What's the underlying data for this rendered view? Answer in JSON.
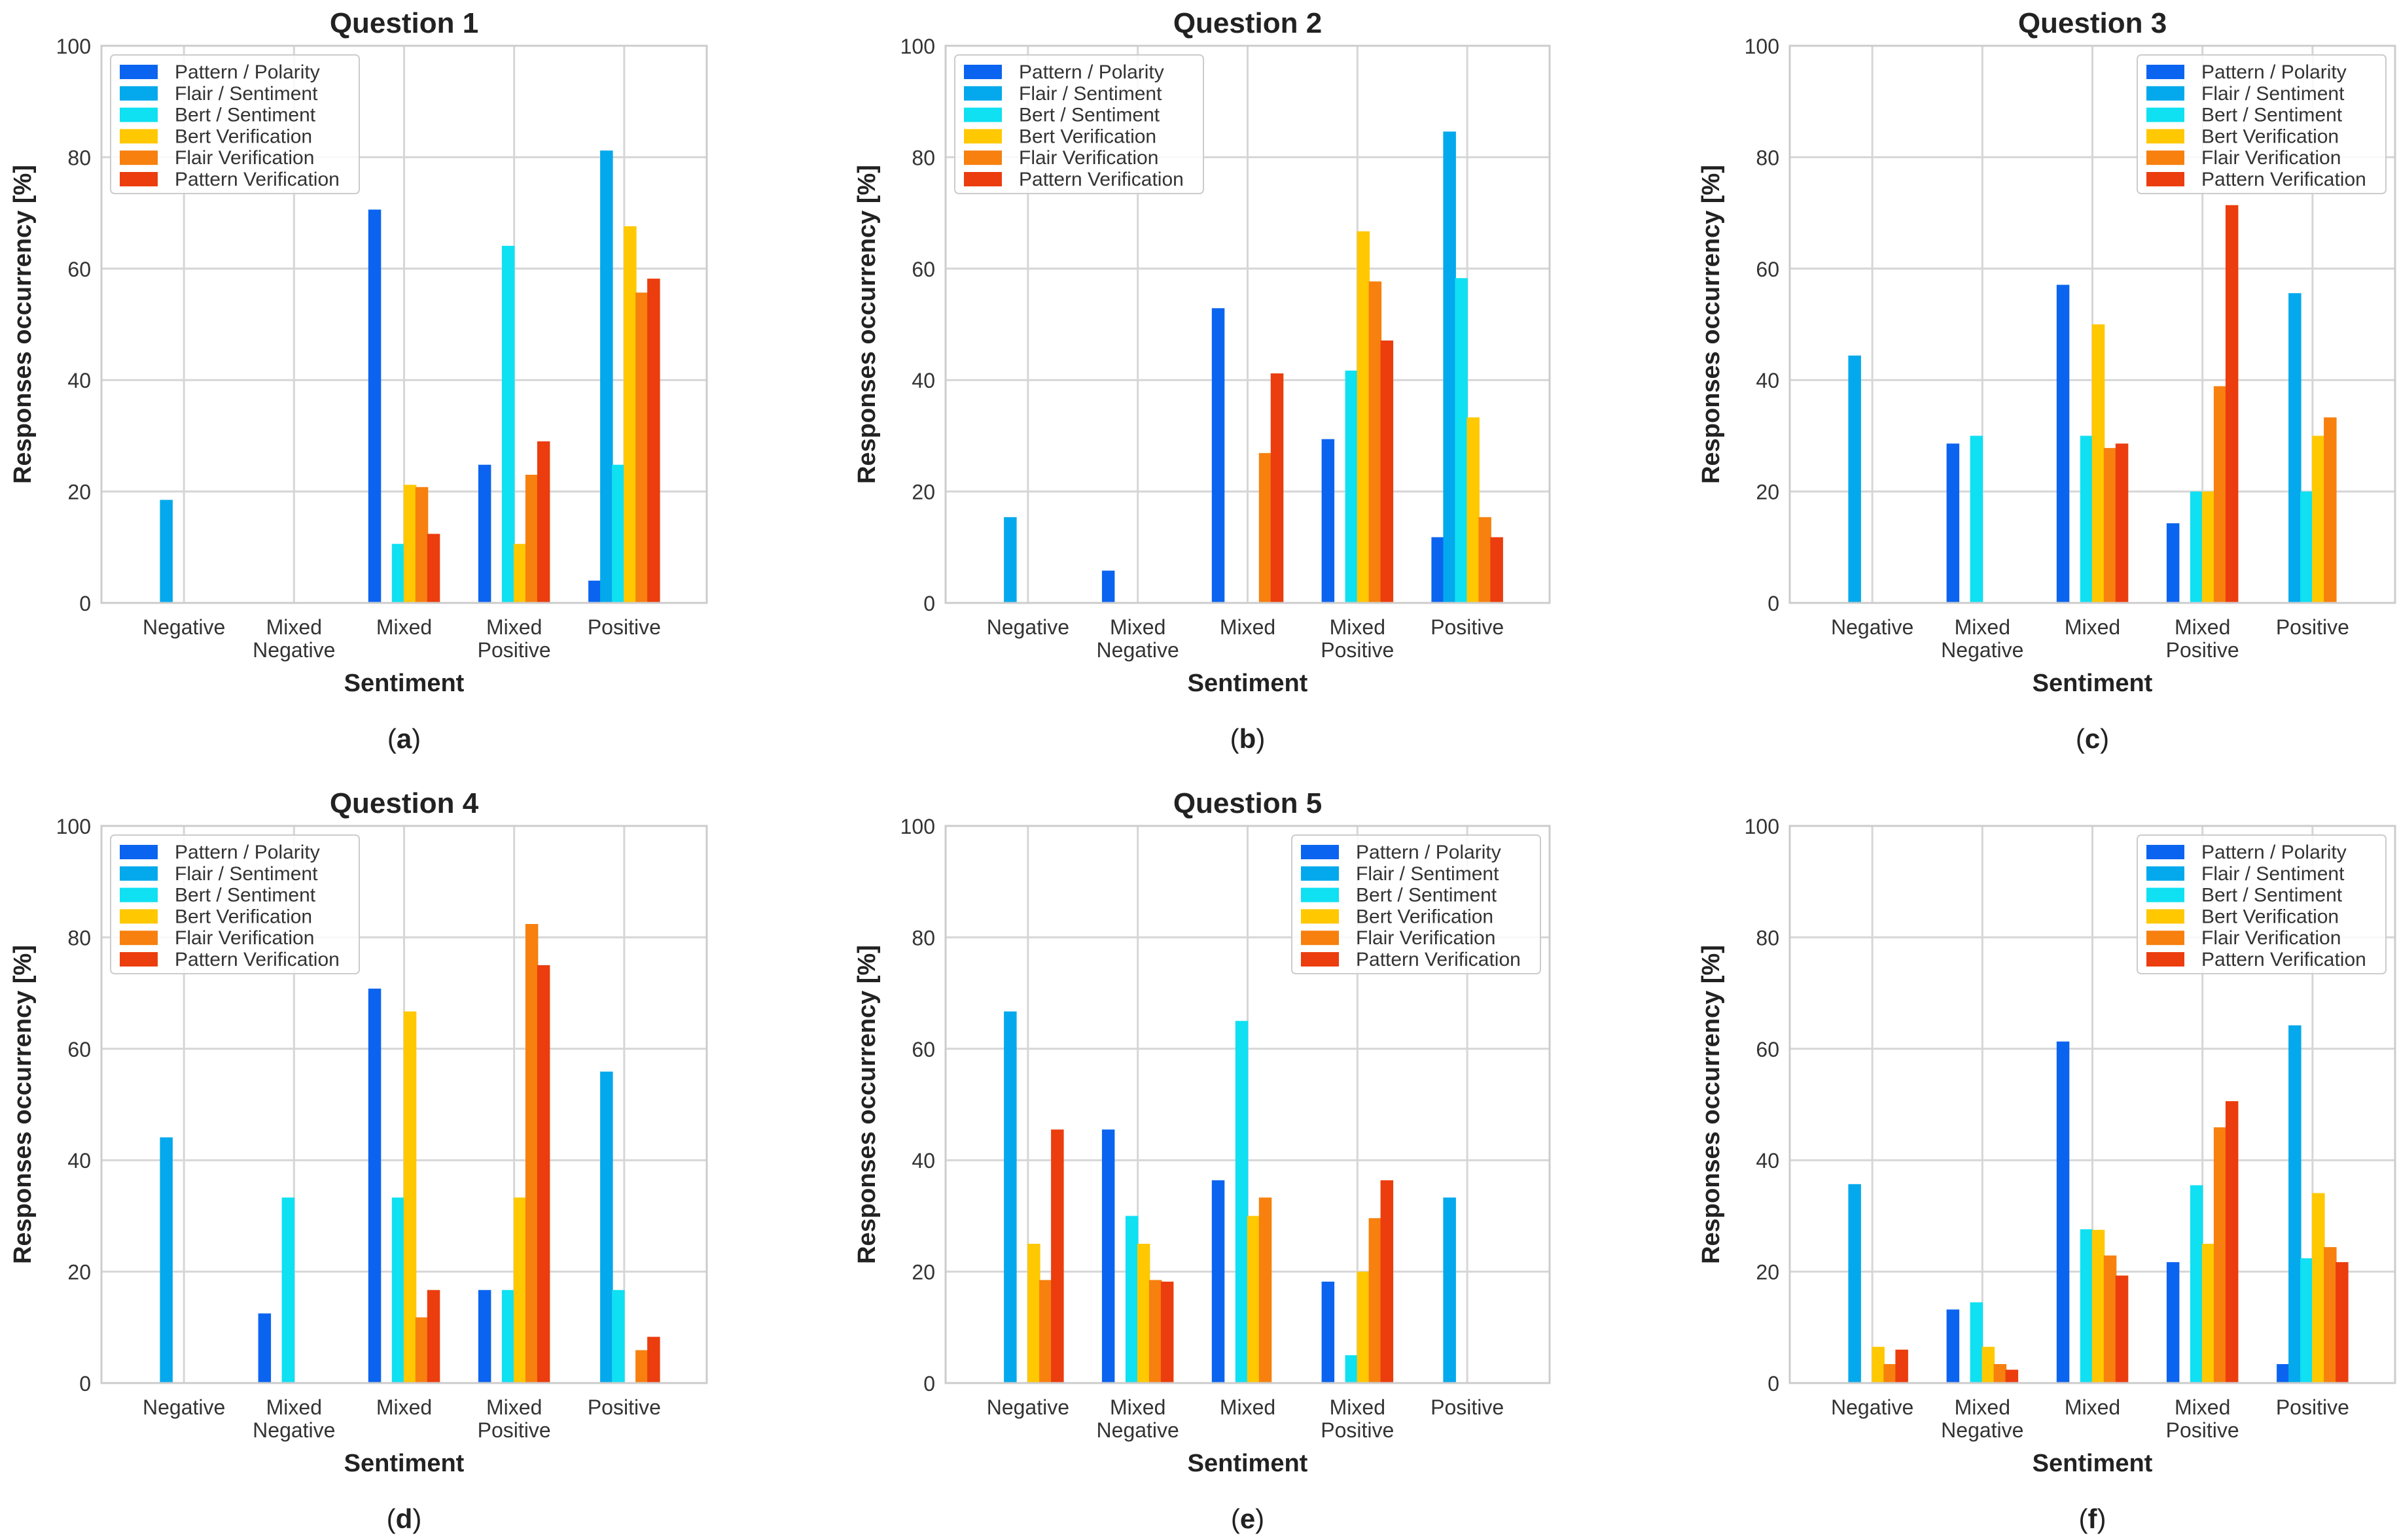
{
  "figure": {
    "series_names": [
      "Pattern / Polarity",
      "Flair / Sentiment",
      "Bert / Sentiment",
      "Bert Verification",
      "Flair Verification",
      "Pattern Verification"
    ],
    "series_colors": [
      "#0b64f0",
      "#03a9ec",
      "#0fe0f2",
      "#ffc800",
      "#f7800f",
      "#eb3d0e"
    ]
  },
  "chart_data": [
    {
      "type": "bar",
      "title": "Question 1",
      "panel_label": "(a)",
      "xlabel": "Sentiment",
      "ylabel": "Responses occurrency [%]",
      "ylim": [
        0,
        100
      ],
      "yticks": [
        0,
        20,
        40,
        60,
        80,
        100
      ],
      "grid": true,
      "legend": "top-left",
      "categories": [
        "Negative",
        "Mixed\nNegative",
        "Mixed",
        "Mixed\nPositive",
        "Positive"
      ],
      "series": [
        {
          "name": "Pattern / Polarity",
          "values": [
            0,
            0,
            70.6,
            24.8,
            4.0
          ]
        },
        {
          "name": "Flair / Sentiment",
          "values": [
            18.5,
            0,
            0,
            0,
            81.2
          ]
        },
        {
          "name": "Bert / Sentiment",
          "values": [
            0,
            0,
            10.6,
            64.1,
            24.8
          ]
        },
        {
          "name": "Bert Verification",
          "values": [
            0,
            0,
            21.2,
            10.6,
            67.6
          ]
        },
        {
          "name": "Flair Verification",
          "values": [
            0,
            0,
            20.8,
            23.0,
            55.7
          ]
        },
        {
          "name": "Pattern Verification",
          "values": [
            0,
            0,
            12.4,
            29.0,
            58.2
          ]
        }
      ]
    },
    {
      "type": "bar",
      "title": "Question 2",
      "panel_label": "(b)",
      "xlabel": "Sentiment",
      "ylabel": "Responses occurrency [%]",
      "ylim": [
        0,
        100
      ],
      "yticks": [
        0,
        20,
        40,
        60,
        80,
        100
      ],
      "grid": true,
      "legend": "top-left",
      "categories": [
        "Negative",
        "Mixed\nNegative",
        "Mixed",
        "Mixed\nPositive",
        "Positive"
      ],
      "series": [
        {
          "name": "Pattern / Polarity",
          "values": [
            0,
            5.8,
            52.9,
            29.4,
            11.8
          ]
        },
        {
          "name": "Flair / Sentiment",
          "values": [
            15.4,
            0,
            0,
            0,
            84.6
          ]
        },
        {
          "name": "Bert / Sentiment",
          "values": [
            0,
            0,
            0,
            41.7,
            58.3
          ]
        },
        {
          "name": "Bert Verification",
          "values": [
            0,
            0,
            0,
            66.7,
            33.3
          ]
        },
        {
          "name": "Flair Verification",
          "values": [
            0,
            0,
            26.9,
            57.7,
            15.4
          ]
        },
        {
          "name": "Pattern Verification",
          "values": [
            0,
            0,
            41.2,
            47.1,
            11.8
          ]
        }
      ]
    },
    {
      "type": "bar",
      "title": "Question 3",
      "panel_label": "(c)",
      "xlabel": "Sentiment",
      "ylabel": "Responses occurrency [%]",
      "ylim": [
        0,
        100
      ],
      "yticks": [
        0,
        20,
        40,
        60,
        80,
        100
      ],
      "grid": true,
      "legend": "top-right",
      "categories": [
        "Negative",
        "Mixed\nNegative",
        "Mixed",
        "Mixed\nPositive",
        "Positive"
      ],
      "series": [
        {
          "name": "Pattern / Polarity",
          "values": [
            0,
            28.6,
            57.1,
            14.3,
            0
          ]
        },
        {
          "name": "Flair / Sentiment",
          "values": [
            44.4,
            0,
            0,
            0,
            55.6
          ]
        },
        {
          "name": "Bert / Sentiment",
          "values": [
            0,
            30.0,
            30.0,
            20.0,
            20.0
          ]
        },
        {
          "name": "Bert Verification",
          "values": [
            0,
            0,
            50.0,
            20.0,
            30.0
          ]
        },
        {
          "name": "Flair Verification",
          "values": [
            0,
            0,
            27.8,
            38.9,
            33.3
          ]
        },
        {
          "name": "Pattern Verification",
          "values": [
            0,
            0,
            28.6,
            71.4,
            0
          ]
        }
      ]
    },
    {
      "type": "bar",
      "title": "Question 4",
      "panel_label": "(d)",
      "xlabel": "Sentiment",
      "ylabel": "Responses occurrency [%]",
      "ylim": [
        0,
        100
      ],
      "yticks": [
        0,
        20,
        40,
        60,
        80,
        100
      ],
      "grid": true,
      "legend": "top-left",
      "categories": [
        "Negative",
        "Mixed\nNegative",
        "Mixed",
        "Mixed\nPositive",
        "Positive"
      ],
      "series": [
        {
          "name": "Pattern / Polarity",
          "values": [
            0,
            12.5,
            70.8,
            16.7,
            0
          ]
        },
        {
          "name": "Flair / Sentiment",
          "values": [
            44.1,
            0,
            0,
            0,
            55.9
          ]
        },
        {
          "name": "Bert / Sentiment",
          "values": [
            0,
            33.3,
            33.3,
            16.7,
            16.7
          ]
        },
        {
          "name": "Bert Verification",
          "values": [
            0,
            0,
            66.7,
            33.3,
            0
          ]
        },
        {
          "name": "Flair Verification",
          "values": [
            0,
            0,
            11.8,
            82.4,
            5.9
          ]
        },
        {
          "name": "Pattern Verification",
          "values": [
            0,
            0,
            16.7,
            75.0,
            8.3
          ]
        }
      ]
    },
    {
      "type": "bar",
      "title": "Question 5",
      "panel_label": "(e)",
      "xlabel": "Sentiment",
      "ylabel": "Responses occurrency [%]",
      "ylim": [
        0,
        100
      ],
      "yticks": [
        0,
        20,
        40,
        60,
        80,
        100
      ],
      "grid": true,
      "legend": "top-right",
      "categories": [
        "Negative",
        "Mixed\nNegative",
        "Mixed",
        "Mixed\nPositive",
        "Positive"
      ],
      "series": [
        {
          "name": "Pattern / Polarity",
          "values": [
            0,
            45.5,
            36.4,
            18.2,
            0
          ]
        },
        {
          "name": "Flair / Sentiment",
          "values": [
            66.7,
            0,
            0,
            0,
            33.3
          ]
        },
        {
          "name": "Bert / Sentiment",
          "values": [
            0,
            30.0,
            65.0,
            5.0,
            0
          ]
        },
        {
          "name": "Bert Verification",
          "values": [
            25.0,
            25.0,
            30.0,
            20.0,
            0
          ]
        },
        {
          "name": "Flair Verification",
          "values": [
            18.5,
            18.5,
            33.3,
            29.6,
            0
          ]
        },
        {
          "name": "Pattern Verification",
          "values": [
            45.5,
            18.2,
            0,
            36.4,
            0
          ]
        }
      ]
    },
    {
      "type": "bar",
      "title": "",
      "panel_label": "(f)",
      "xlabel": "Sentiment",
      "ylabel": "Responses occurrency [%]",
      "ylim": [
        0,
        100
      ],
      "yticks": [
        0,
        20,
        40,
        60,
        80,
        100
      ],
      "grid": true,
      "legend": "top-right",
      "categories": [
        "Negative",
        "Mixed\nNegative",
        "Mixed",
        "Mixed\nPositive",
        "Positive"
      ],
      "series": [
        {
          "name": "Pattern / Polarity",
          "values": [
            0,
            13.2,
            61.3,
            21.7,
            3.4
          ]
        },
        {
          "name": "Flair / Sentiment",
          "values": [
            35.7,
            0,
            0,
            0,
            64.2
          ]
        },
        {
          "name": "Bert / Sentiment",
          "values": [
            0,
            14.5,
            27.6,
            35.5,
            22.4
          ]
        },
        {
          "name": "Bert Verification",
          "values": [
            6.5,
            6.5,
            27.5,
            25.0,
            34.1
          ]
        },
        {
          "name": "Flair Verification",
          "values": [
            3.4,
            3.4,
            22.9,
            45.9,
            24.4
          ]
        },
        {
          "name": "Pattern Verification",
          "values": [
            6.0,
            2.4,
            19.3,
            50.6,
            21.7
          ]
        }
      ]
    }
  ]
}
